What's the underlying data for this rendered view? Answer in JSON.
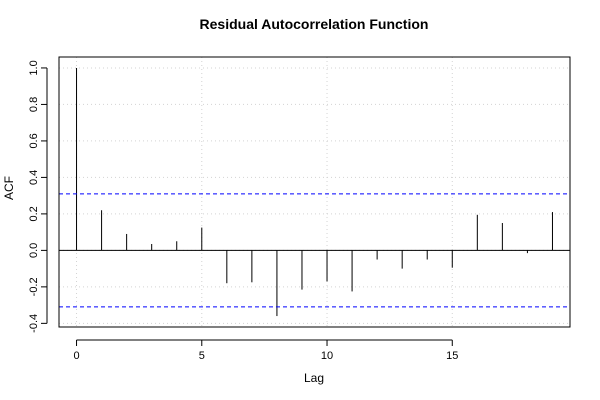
{
  "chart_data": {
    "type": "bar",
    "title": "Residual Autocorrelation Function",
    "xlabel": "Lag",
    "ylabel": "ACF",
    "x": [
      0,
      1,
      2,
      3,
      4,
      5,
      6,
      7,
      8,
      9,
      10,
      11,
      12,
      13,
      14,
      15,
      16,
      17,
      18,
      19
    ],
    "values": [
      1.0,
      0.22,
      0.09,
      0.035,
      0.05,
      0.125,
      -0.18,
      -0.175,
      -0.36,
      -0.215,
      -0.17,
      -0.225,
      -0.05,
      -0.1,
      -0.05,
      -0.095,
      0.195,
      0.15,
      -0.015,
      0.21
    ],
    "confidence_bounds": [
      0.31,
      -0.31
    ],
    "xlim": [
      -0.7,
      19.7
    ],
    "ylim": [
      -0.42,
      1.06
    ],
    "xticks": [
      "0",
      "5",
      "10",
      "15"
    ],
    "yticks": [
      "-0.4",
      "-0.2",
      "0.0",
      "0.2",
      "0.4",
      "0.6",
      "0.8",
      "1.0"
    ],
    "grid": true,
    "colors": {
      "bars": "#000000",
      "bounds": "#0000ff",
      "grid": "#d3d3d3",
      "zero_line": "#000000"
    }
  }
}
